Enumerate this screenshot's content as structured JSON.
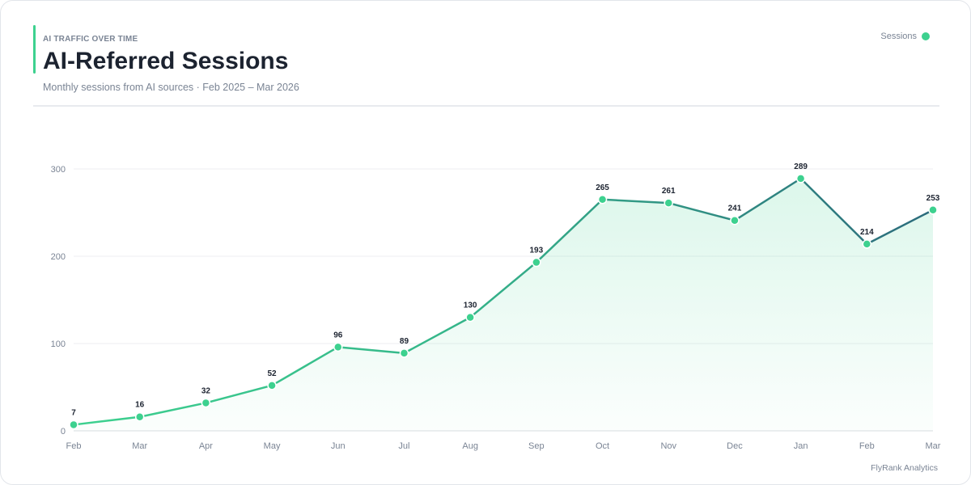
{
  "header": {
    "eyebrow": "AI TRAFFIC OVER TIME",
    "title": "AI-Referred Sessions",
    "subtitle": "Monthly sessions from AI sources · Feb 2025 – Mar 2026"
  },
  "legend": {
    "label": "Sessions"
  },
  "footer": {
    "text": "FlyRank Analytics"
  },
  "colors": {
    "accent": "#3dd18f",
    "line_start": "#3dd18f",
    "line_end": "#2c6b7c",
    "area": "#3dd18f",
    "grid": "#eceef1"
  },
  "chart_data": {
    "type": "area",
    "title": "AI-Referred Sessions",
    "categories": [
      "Feb",
      "Mar",
      "Apr",
      "May",
      "Jun",
      "Jul",
      "Aug",
      "Sep",
      "Oct",
      "Nov",
      "Dec",
      "Jan",
      "Feb",
      "Mar"
    ],
    "series": [
      {
        "name": "Sessions",
        "values": [
          7,
          16,
          32,
          52,
          96,
          89,
          130,
          193,
          265,
          261,
          241,
          289,
          214,
          253
        ]
      }
    ],
    "ylim": [
      0,
      300
    ],
    "yticks": [
      0,
      100,
      200,
      300
    ],
    "grid": true,
    "legend_position": "top-right",
    "data_labels": true
  }
}
